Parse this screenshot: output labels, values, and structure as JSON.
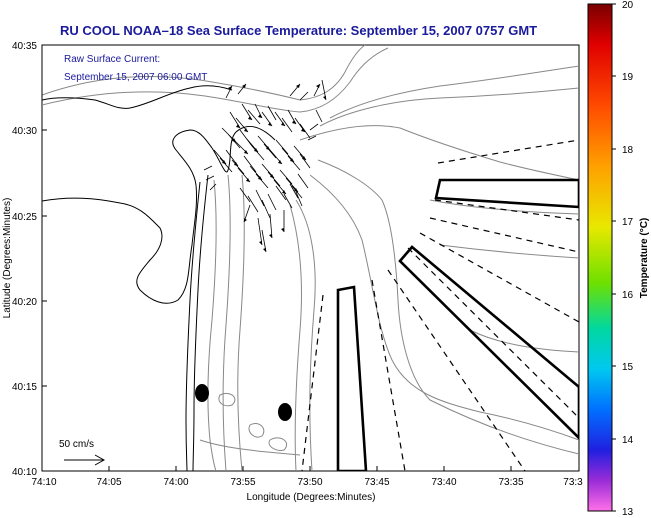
{
  "title": "RU COOL  NOAA–18  Sea Surface Temperature:  September 15, 2007 0757 GMT",
  "overlay": {
    "line1": "Raw Surface Current:",
    "line2": "September 15, 2007 06:00 GMT"
  },
  "scale_label": "50 cm/s",
  "xlabel": "Longitude (Degrees:Minutes)",
  "ylabel": "Latitude (Degrees:Minutes)",
  "x_ticks": [
    "74:10",
    "74:05",
    "74:00",
    "73:55",
    "73:50",
    "73:45",
    "73:40",
    "73:35",
    "73:3"
  ],
  "y_ticks": [
    "40:35",
    "40:30",
    "40:25",
    "40:20",
    "40:15",
    "40:10"
  ],
  "colorbar": {
    "label": "Temperature (°C)",
    "ticks": [
      "20",
      "19",
      "18",
      "17",
      "16",
      "15",
      "14",
      "13"
    ],
    "min": 13,
    "max": 20
  },
  "colors": {
    "title": "#1a1a9c",
    "overlay_text": "#1a1a9c",
    "contour": "#888888",
    "coast": "#000000"
  }
}
